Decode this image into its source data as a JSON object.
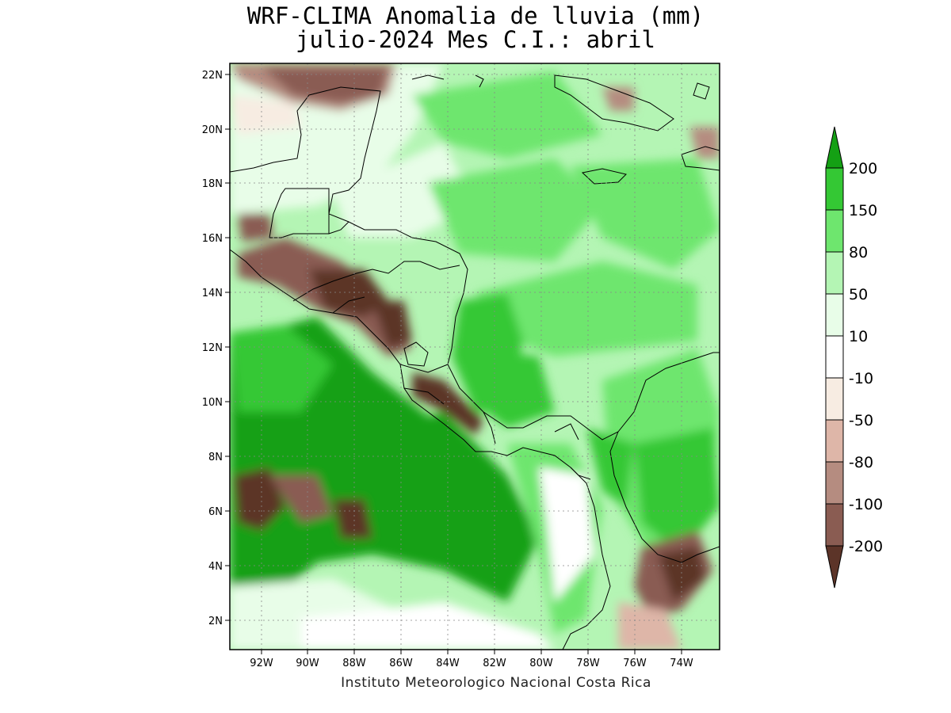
{
  "title_line1": "WRF-CLIMA Anomalia de lluvia (mm)",
  "title_line2": "julio-2024 Mes C.I.: abril",
  "credit": "Instituto Meteorologico Nacional Costa Rica",
  "axes": {
    "lon_ticks": [
      "92W",
      "90W",
      "88W",
      "86W",
      "84W",
      "82W",
      "80W",
      "78W",
      "76W",
      "74W"
    ],
    "lat_ticks": [
      "22N",
      "20N",
      "18N",
      "16N",
      "14N",
      "12N",
      "10N",
      "8N",
      "6N",
      "4N",
      "2N"
    ],
    "lon_range": [
      -93.2,
      -72.5
    ],
    "lat_range": [
      0.9,
      22.4
    ]
  },
  "legend": {
    "labels": [
      "200",
      "150",
      "80",
      "50",
      "10",
      "-10",
      "-50",
      "-80",
      "-100",
      "-200"
    ],
    "colors": [
      "#14a014",
      "#34c834",
      "#6ee66e",
      "#b4f5b4",
      "#e8fde8",
      "#ffffff",
      "#f7ece2",
      "#deb6a8",
      "#b58c80",
      "#8a5c52",
      "#5c3428"
    ]
  },
  "colors": {
    "strong_wet": "#14a014",
    "wet": "#34c834",
    "mid_wet": "#6ee66e",
    "light_wet": "#b4f5b4",
    "very_light_wet": "#e8fde8",
    "neutral": "#ffffff",
    "very_light_dry": "#f7ece2",
    "light_dry": "#deb6a8",
    "mid_dry": "#b58c80",
    "dry": "#8a5c52",
    "strong_dry": "#5c3428"
  }
}
